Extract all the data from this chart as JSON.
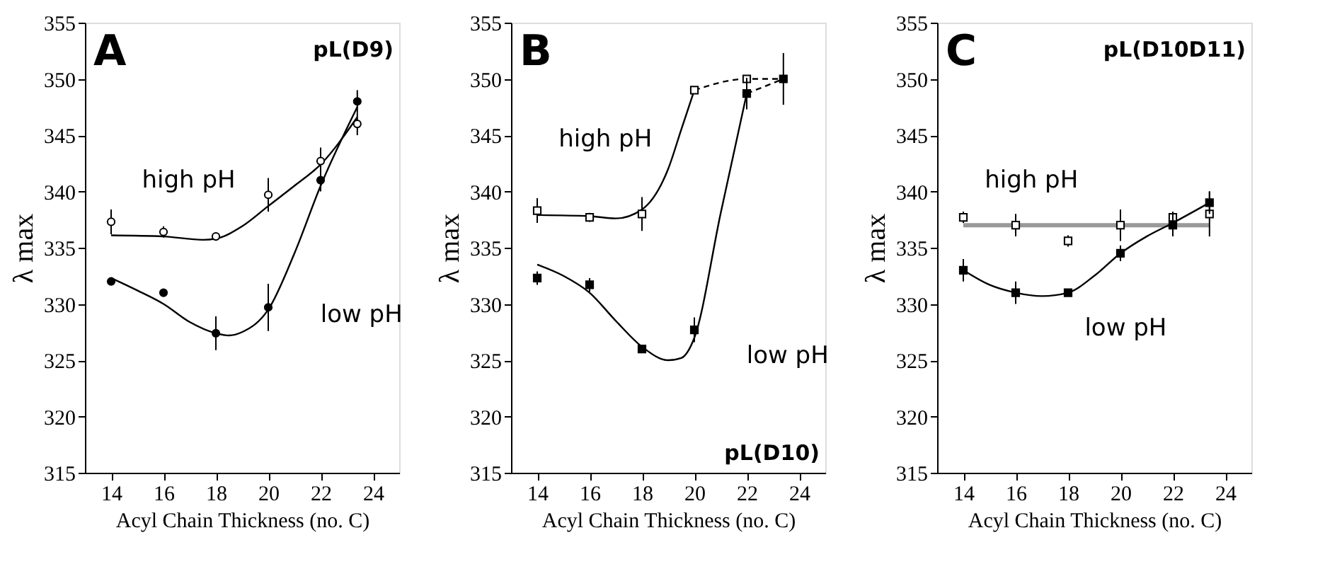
{
  "chart_data": [
    {
      "type": "scatter",
      "title": "A",
      "subtitle": "pL(D9)",
      "xlabel": "Acyl Chain Thickness (no. C)",
      "ylabel": "λ max",
      "xlim": [
        13,
        25
      ],
      "xticks": [
        14,
        16,
        18,
        20,
        22,
        24
      ],
      "ylim": [
        315,
        355
      ],
      "yticks": [
        315,
        320,
        325,
        330,
        335,
        340,
        345,
        350,
        355
      ],
      "grid": false,
      "annotations": [
        "high pH",
        "low pH"
      ],
      "series": [
        {
          "type": "line",
          "color": "#000000",
          "line_style": "solid",
          "x": [
            14,
            16,
            17.5,
            18,
            19,
            20,
            21,
            22,
            23.4
          ],
          "values": [
            336.1,
            336.0,
            335.7,
            335.8,
            336.9,
            338.7,
            340.5,
            342.4,
            346.6
          ]
        },
        {
          "type": "line",
          "color": "#000000",
          "line_style": "solid",
          "x": [
            14,
            15,
            16,
            17,
            18,
            18.5,
            19,
            20,
            21,
            22,
            23.4
          ],
          "values": [
            332.3,
            331.2,
            330,
            328.4,
            327.4,
            327.2,
            327.5,
            329.5,
            334.5,
            340.5,
            347.5
          ]
        },
        {
          "type": "scatter",
          "marker": "circle",
          "color": "#ffffff",
          "x": [
            14,
            16,
            18,
            20,
            22,
            23.4
          ],
          "values": [
            337.3,
            336.4,
            336.0,
            339.7,
            342.7,
            346.0
          ],
          "errors": [
            1.1,
            0.5,
            null,
            1.5,
            1.2,
            1.0
          ]
        },
        {
          "type": "scatter",
          "marker": "circle",
          "color": "#000000",
          "x": [
            14,
            16,
            18,
            20,
            22,
            23.4
          ],
          "values": [
            332.0,
            331.0,
            327.4,
            329.7,
            341.0,
            348.0
          ],
          "errors": [
            null,
            null,
            1.5,
            2.1,
            1.0,
            1.0
          ]
        }
      ]
    },
    {
      "type": "scatter",
      "title": "B",
      "subtitle": "pL(D10)",
      "xlabel": "Acyl Chain Thickness (no. C)",
      "ylabel": "λ max",
      "xlim": [
        13,
        25
      ],
      "xticks": [
        14,
        16,
        18,
        20,
        22,
        24
      ],
      "ylim": [
        315,
        355
      ],
      "yticks": [
        315,
        320,
        325,
        330,
        335,
        340,
        345,
        350,
        355
      ],
      "grid": false,
      "annotations": [
        "high pH",
        "low pH"
      ],
      "series": [
        {
          "type": "line",
          "color": "#000000",
          "line_style": "solid",
          "x": [
            14,
            16,
            17,
            18,
            19,
            19.5,
            20
          ],
          "values": [
            337.9,
            337.8,
            337.6,
            338.4,
            342,
            345.5,
            349
          ]
        },
        {
          "type": "line",
          "color": "#000000",
          "line_style": "dashed",
          "x": [
            20,
            22,
            23.4
          ],
          "values": [
            349,
            350,
            350
          ]
        },
        {
          "type": "line",
          "color": "#000000",
          "line_style": "solid",
          "x": [
            14,
            15,
            16,
            17,
            18,
            19,
            19.5,
            20,
            21,
            22
          ],
          "values": [
            333.5,
            332.5,
            331,
            328.5,
            326.2,
            325,
            325.2,
            327,
            338,
            348.7
          ]
        },
        {
          "type": "line",
          "color": "#000000",
          "line_style": "dashed",
          "x": [
            22,
            23.4
          ],
          "values": [
            348.7,
            350
          ]
        },
        {
          "type": "scatter",
          "marker": "square",
          "color": "#ffffff",
          "x": [
            14,
            16,
            18,
            20,
            22
          ],
          "values": [
            338.3,
            337.7,
            338.0,
            349.0,
            350.0
          ],
          "errors": [
            1.1,
            0.4,
            1.5,
            null,
            null
          ]
        },
        {
          "type": "scatter",
          "marker": "square",
          "color": "#000000",
          "x": [
            14,
            16,
            18,
            20,
            22,
            23.4
          ],
          "values": [
            332.3,
            331.7,
            326.0,
            327.7,
            348.7,
            350.0
          ],
          "errors": [
            0.6,
            0.6,
            null,
            1.1,
            1.4,
            2.3
          ]
        }
      ]
    },
    {
      "type": "scatter",
      "title": "C",
      "subtitle": "pL(D10D11)",
      "xlabel": "Acyl Chain Thickness (no. C)",
      "ylabel": "λ max",
      "xlim": [
        13,
        25
      ],
      "xticks": [
        14,
        16,
        18,
        20,
        22,
        24
      ],
      "ylim": [
        315,
        355
      ],
      "yticks": [
        315,
        320,
        325,
        330,
        335,
        340,
        345,
        350,
        355
      ],
      "grid": false,
      "annotations": [
        "high pH",
        "low pH"
      ],
      "series": [
        {
          "type": "line",
          "color": "#999999",
          "line_style": "solid",
          "x": [
            14,
            23.4
          ],
          "values": [
            337,
            337
          ]
        },
        {
          "type": "line",
          "color": "#000000",
          "line_style": "solid",
          "x": [
            14,
            15,
            16,
            17,
            18,
            19,
            20,
            21,
            22,
            23.4
          ],
          "values": [
            333,
            331.7,
            331,
            330.7,
            331,
            332.5,
            334.5,
            336,
            337.2,
            339
          ]
        },
        {
          "type": "scatter",
          "marker": "square",
          "color": "#ffffff",
          "x": [
            14,
            16,
            18,
            20,
            22,
            23.4
          ],
          "values": [
            337.7,
            337.0,
            335.6,
            337.0,
            337.7,
            338.0
          ],
          "errors": [
            0.5,
            1.0,
            0.5,
            1.4,
            0.5,
            2.0
          ]
        },
        {
          "type": "scatter",
          "marker": "square",
          "color": "#000000",
          "x": [
            14,
            16,
            18,
            20,
            22,
            23.4
          ],
          "values": [
            333.0,
            331.0,
            331.0,
            334.5,
            337.0,
            339.0
          ],
          "errors": [
            1.0,
            1.0,
            null,
            0.7,
            1.0,
            1.0
          ]
        }
      ]
    }
  ]
}
